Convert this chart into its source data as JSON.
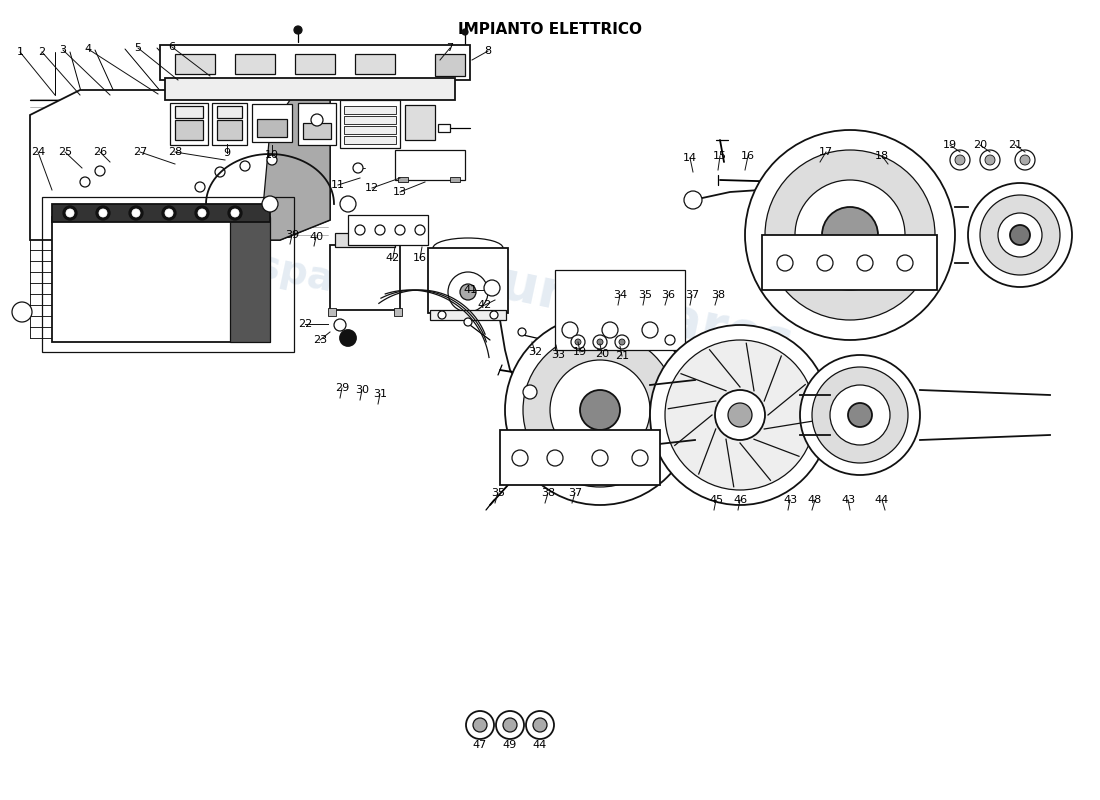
{
  "title": "IMPIANTO ELETTRICO",
  "title_fontsize": 11,
  "title_fontweight": "bold",
  "background_color": "#ffffff",
  "watermark_text1": "eurospares",
  "watermark_text2": "eurospares",
  "watermark_color": "#c5d5e5",
  "watermark_alpha": 0.45,
  "fig_width": 11.0,
  "fig_height": 8.0,
  "dpi": 100,
  "line_color": "#111111",
  "gray_fill": "#888888",
  "light_gray": "#cccccc",
  "mid_gray": "#666666",
  "dark_fill": "#333333"
}
